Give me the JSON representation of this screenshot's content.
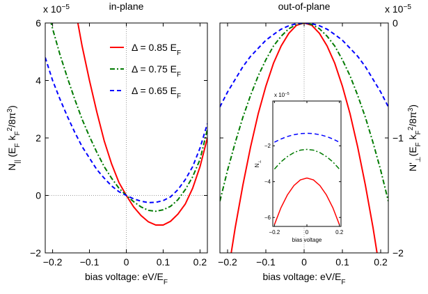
{
  "chart_data": [
    {
      "type": "line",
      "title": "in-plane",
      "multiplier": {
        "base": "x 10",
        "exponent": "−5"
      },
      "xlabel": [
        "bias voltage: eV/E",
        "F"
      ],
      "ylabel": [
        "N",
        "||",
        " (E",
        "F",
        " k",
        "F",
        "2",
        "/8π",
        "3",
        ")"
      ],
      "x": [
        -0.22,
        -0.2,
        -0.18,
        -0.16,
        -0.14,
        -0.12,
        -0.1,
        -0.08,
        -0.06,
        -0.04,
        -0.02,
        0,
        0.02,
        0.04,
        0.06,
        0.08,
        0.1,
        0.12,
        0.14,
        0.16,
        0.18,
        0.2,
        0.22
      ],
      "xlim": [
        -0.22,
        0.22
      ],
      "xticks": [
        {
          "value": -0.2,
          "label": "−0.2"
        },
        {
          "value": -0.1,
          "label": "−0.1"
        },
        0,
        0.1,
        0.2
      ],
      "ylim": [
        -2,
        6
      ],
      "yticks": [
        {
          "value": -2,
          "label": "−2"
        },
        0,
        2,
        4,
        6
      ],
      "y_axis_side": "left",
      "zero_lines": "both",
      "legend": "top-right",
      "series": [
        {
          "name": "Δ = 0.85 E",
          "name_sub": "F",
          "color": "#ff0000",
          "dash": "solid",
          "values": [
            null,
            null,
            null,
            null,
            6.6,
            5.2,
            4.0,
            2.9,
            1.9,
            1.1,
            0.45,
            0,
            -0.4,
            -0.7,
            -0.92,
            -1.03,
            -1.03,
            -0.9,
            -0.65,
            -0.3,
            0.25,
            1.0,
            2.0
          ]
        },
        {
          "name": "Δ = 0.75 E",
          "name_sub": "F",
          "color": "#007a00",
          "dash": "dashdot",
          "values": [
            6.8,
            5.8,
            4.9,
            4.1,
            3.35,
            2.65,
            2.05,
            1.5,
            1.0,
            0.6,
            0.25,
            0,
            -0.22,
            -0.4,
            -0.52,
            -0.55,
            -0.5,
            -0.38,
            -0.15,
            0.2,
            0.65,
            1.25,
            2.3
          ]
        },
        {
          "name": "Δ = 0.65 E",
          "name_sub": "F",
          "color": "#0000ff",
          "dash": "dashed",
          "values": [
            4.8,
            4.0,
            3.35,
            2.75,
            2.2,
            1.7,
            1.3,
            0.9,
            0.6,
            0.33,
            0.13,
            0,
            -0.12,
            -0.2,
            -0.25,
            -0.24,
            -0.18,
            -0.05,
            0.2,
            0.55,
            1.0,
            1.65,
            2.5
          ]
        }
      ]
    },
    {
      "type": "line",
      "title": "out-of-plane",
      "multiplier": {
        "base": "x 10",
        "exponent": "−5"
      },
      "xlabel": [
        "bias voltage: eV/E",
        "F"
      ],
      "ylabel": [
        "N'",
        "⊥",
        "(E",
        "F",
        " k",
        "F",
        "2",
        "/8π",
        "3",
        ")"
      ],
      "x": [
        -0.22,
        -0.2,
        -0.18,
        -0.16,
        -0.14,
        -0.12,
        -0.1,
        -0.08,
        -0.06,
        -0.04,
        -0.02,
        0,
        0.02,
        0.04,
        0.06,
        0.08,
        0.1,
        0.12,
        0.14,
        0.16,
        0.18,
        0.2,
        0.22
      ],
      "xlim": [
        -0.22,
        0.22
      ],
      "xticks": [
        {
          "value": -0.2,
          "label": "−0.2"
        },
        {
          "value": -0.1,
          "label": "−0.1"
        },
        0,
        0.1,
        0.2
      ],
      "ylim": [
        -2,
        0
      ],
      "yticks": [
        {
          "value": -2,
          "label": "−2"
        },
        {
          "value": -1,
          "label": "−1"
        },
        0
      ],
      "y_axis_side": "right",
      "zero_lines": "x",
      "series": [
        {
          "color": "#ff0000",
          "dash": "solid",
          "values": [
            null,
            -2.2,
            -1.78,
            -1.41,
            -1.08,
            -0.79,
            -0.55,
            -0.35,
            -0.2,
            -0.09,
            -0.02,
            0,
            -0.02,
            -0.09,
            -0.2,
            -0.35,
            -0.55,
            -0.79,
            -1.08,
            -1.41,
            -1.78,
            -2.2,
            null
          ]
        },
        {
          "color": "#007a00",
          "dash": "dashdot",
          "values": [
            -1.55,
            -1.28,
            -1.04,
            -0.82,
            -0.63,
            -0.46,
            -0.32,
            -0.2,
            -0.115,
            -0.05,
            -0.013,
            0,
            -0.013,
            -0.05,
            -0.115,
            -0.2,
            -0.32,
            -0.46,
            -0.63,
            -0.82,
            -1.04,
            -1.28,
            -1.55
          ]
        },
        {
          "color": "#0000ff",
          "dash": "dashed",
          "values": [
            -0.73,
            -0.6,
            -0.49,
            -0.38,
            -0.29,
            -0.22,
            -0.15,
            -0.1,
            -0.054,
            -0.024,
            -0.006,
            0,
            -0.006,
            -0.024,
            -0.054,
            -0.1,
            -0.15,
            -0.22,
            -0.29,
            -0.38,
            -0.49,
            -0.6,
            -0.73
          ]
        }
      ]
    },
    {
      "type": "line",
      "multiplier": {
        "base": "x 10",
        "exponent": "−5"
      },
      "xlabel": [
        "bias voltage"
      ],
      "ylabel": [
        "N",
        "⊥"
      ],
      "x": [
        -0.2,
        -0.16,
        -0.12,
        -0.08,
        -0.04,
        0,
        0.04,
        0.08,
        0.12,
        0.16,
        0.2
      ],
      "xlim": [
        -0.21,
        0.21
      ],
      "xticks": [
        {
          "value": -0.2,
          "label": "−0.2"
        },
        0,
        0.2
      ],
      "ylim": [
        -6.5,
        0.5
      ],
      "yticks": [
        {
          "value": -6,
          "label": "−6"
        },
        {
          "value": -4,
          "label": "−4"
        },
        {
          "value": -2,
          "label": "−2"
        }
      ],
      "y_axis_side": "left",
      "series": [
        {
          "color": "#ff0000",
          "dash": "solid",
          "values": [
            -6.4,
            -5.46,
            -4.74,
            -4.22,
            -3.9,
            -3.8,
            -3.9,
            -4.22,
            -4.74,
            -5.46,
            -6.4
          ]
        },
        {
          "color": "#007a00",
          "dash": "dashdot",
          "values": [
            -3.3,
            -2.9,
            -2.6,
            -2.38,
            -2.24,
            -2.2,
            -2.24,
            -2.38,
            -2.6,
            -2.9,
            -3.3
          ]
        },
        {
          "color": "#0000ff",
          "dash": "dashed",
          "values": [
            -1.8,
            -1.62,
            -1.48,
            -1.38,
            -1.32,
            -1.3,
            -1.32,
            -1.38,
            -1.48,
            -1.62,
            -1.8
          ]
        }
      ]
    }
  ]
}
